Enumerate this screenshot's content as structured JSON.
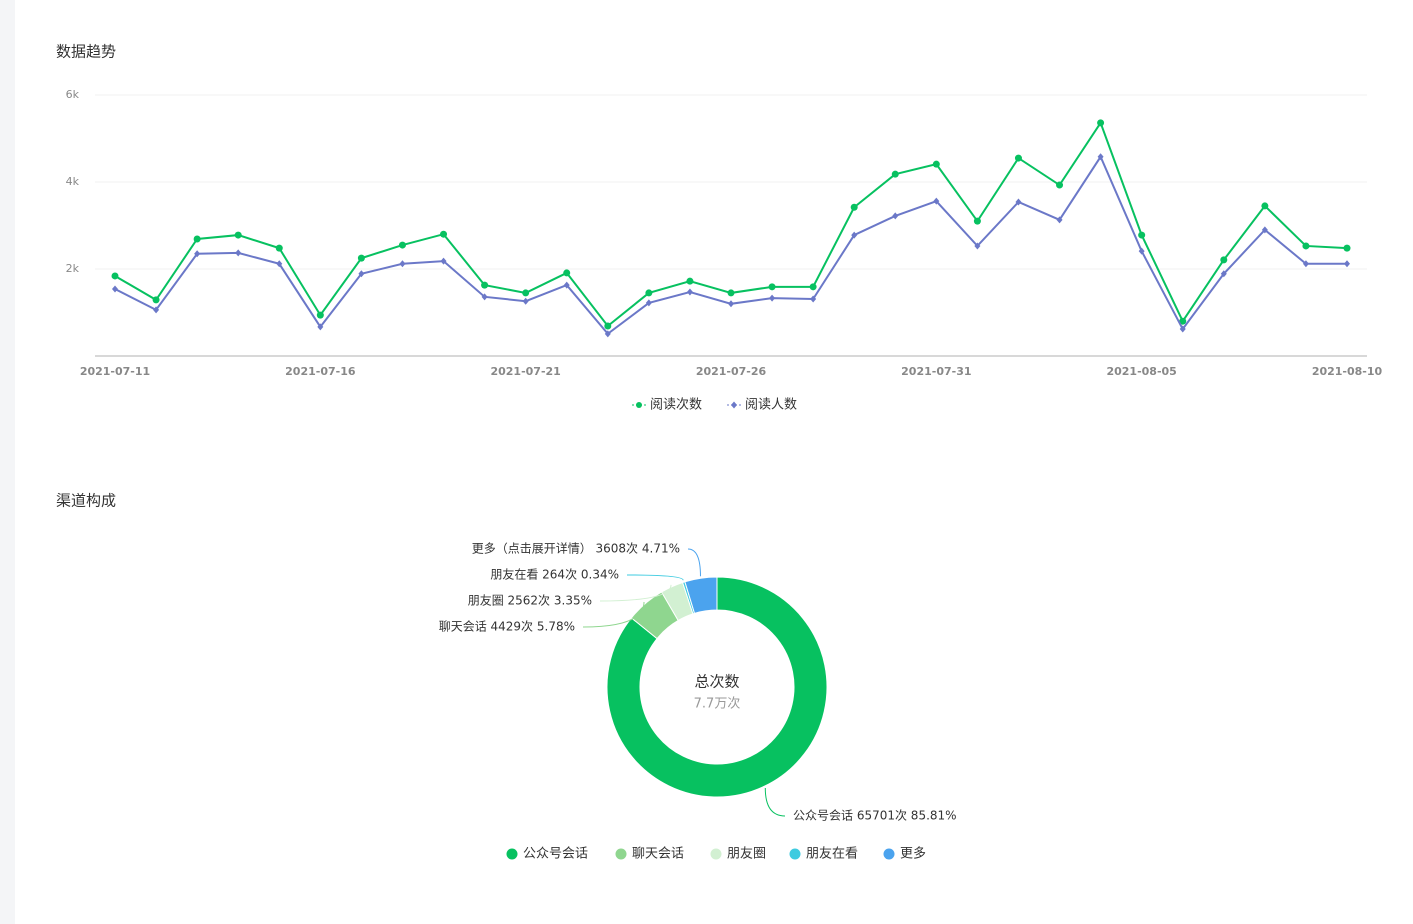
{
  "chart_data": [
    {
      "type": "line",
      "title": "数据趋势",
      "categories": [
        "2021-07-11",
        null,
        null,
        null,
        null,
        "2021-07-16",
        null,
        null,
        null,
        null,
        "2021-07-21",
        null,
        null,
        null,
        null,
        "2021-07-26",
        null,
        null,
        null,
        null,
        "2021-07-31",
        null,
        null,
        null,
        null,
        "2021-08-05",
        null,
        null,
        null,
        null,
        "2021-08-10"
      ],
      "series": [
        {
          "name": "阅读次数",
          "color": "#07c160",
          "marker": "circle",
          "values": [
            1840,
            1290,
            2690,
            2780,
            2480,
            940,
            2250,
            2550,
            2800,
            1630,
            1450,
            1910,
            690,
            1450,
            1720,
            1450,
            1590,
            1590,
            3420,
            4180,
            4410,
            3100,
            4550,
            3930,
            5360,
            2780,
            800,
            2210,
            3450,
            2530,
            2480
          ]
        },
        {
          "name": "阅读人数",
          "color": "#6b78c8",
          "marker": "diamond",
          "values": [
            1540,
            1060,
            2350,
            2370,
            2120,
            670,
            1890,
            2120,
            2180,
            1360,
            1260,
            1630,
            510,
            1220,
            1470,
            1200,
            1330,
            1310,
            2780,
            3220,
            3560,
            2530,
            3540,
            3130,
            4580,
            2410,
            620,
            1890,
            2900,
            2120,
            2120
          ]
        }
      ],
      "ylim": [
        0,
        6000
      ],
      "yticks": [
        {
          "value": 2000,
          "label": "2k"
        },
        {
          "value": 4000,
          "label": "4k"
        },
        {
          "value": 6000,
          "label": "6k"
        }
      ],
      "grid": true,
      "legend": "bottom"
    },
    {
      "type": "donut",
      "title": "渠道构成",
      "center_title": "总次数",
      "center_label": "7.7万次",
      "categories": [
        "公众号会话",
        "聊天会话",
        "朋友圈",
        "朋友在看",
        "更多"
      ],
      "values": [
        65701,
        4429,
        2562,
        264,
        3608
      ],
      "value_labels": [
        "公众号会话 65701次 85.81%",
        "聊天会话 4429次 5.78%",
        "朋友圈 2562次 3.35%",
        "朋友在看 264次 0.34%",
        "更多（点击展开详情） 3608次 4.71%"
      ],
      "colors": [
        "#07c160",
        "#8fd68f",
        "#d2f0d2",
        "#3ecbe0",
        "#4ba3ee"
      ],
      "legend": "bottom"
    }
  ]
}
